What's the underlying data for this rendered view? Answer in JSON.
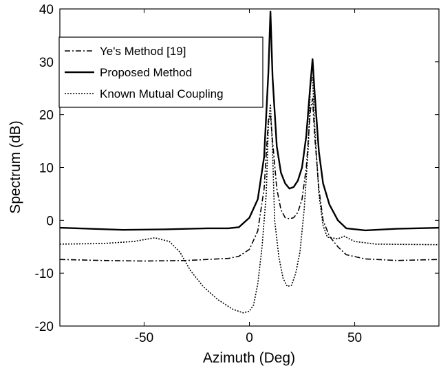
{
  "chart_data": {
    "type": "line",
    "title": "",
    "xlabel": "Azimuth (Deg)",
    "ylabel": "Spectrum (dB)",
    "xlim": [
      -90,
      90
    ],
    "ylim": [
      -20,
      40
    ],
    "xticks": [
      -50,
      0,
      50
    ],
    "yticks": [
      -20,
      -10,
      0,
      10,
      20,
      30,
      40
    ],
    "grid": false,
    "legend_position": "top-left",
    "series": [
      {
        "name": "Ye's Method [19]",
        "style": "dash-dot",
        "color": "#000000",
        "points": [
          [
            -90,
            -7.4
          ],
          [
            -70,
            -7.6
          ],
          [
            -50,
            -7.7
          ],
          [
            -30,
            -7.6
          ],
          [
            -20,
            -7.4
          ],
          [
            -10,
            -7.2
          ],
          [
            -5,
            -6.8
          ],
          [
            0,
            -5.5
          ],
          [
            4,
            -2
          ],
          [
            7,
            6
          ],
          [
            9,
            19
          ],
          [
            10,
            20
          ],
          [
            11,
            15
          ],
          [
            13,
            6
          ],
          [
            15,
            2
          ],
          [
            17,
            0.5
          ],
          [
            19,
            0.3
          ],
          [
            21,
            0.5
          ],
          [
            23,
            1.5
          ],
          [
            25,
            4
          ],
          [
            27,
            10
          ],
          [
            29,
            21
          ],
          [
            30,
            23
          ],
          [
            31,
            16
          ],
          [
            33,
            6
          ],
          [
            35,
            0
          ],
          [
            38,
            -3
          ],
          [
            42,
            -5
          ],
          [
            46,
            -6.5
          ],
          [
            55,
            -7.3
          ],
          [
            70,
            -7.6
          ],
          [
            90,
            -7.4
          ]
        ]
      },
      {
        "name": "Proposed Method",
        "style": "solid",
        "color": "#000000",
        "points": [
          [
            -90,
            -1.4
          ],
          [
            -60,
            -1.8
          ],
          [
            -40,
            -1.7
          ],
          [
            -20,
            -1.5
          ],
          [
            -10,
            -1.5
          ],
          [
            -5,
            -1.3
          ],
          [
            0,
            0.5
          ],
          [
            4,
            4
          ],
          [
            7,
            12
          ],
          [
            9,
            28
          ],
          [
            10,
            39.5
          ],
          [
            11,
            27
          ],
          [
            13,
            14
          ],
          [
            15,
            9
          ],
          [
            17,
            7
          ],
          [
            19,
            6
          ],
          [
            21,
            6.3
          ],
          [
            23,
            7.5
          ],
          [
            25,
            10
          ],
          [
            27,
            16
          ],
          [
            29,
            26
          ],
          [
            30,
            30.5
          ],
          [
            31,
            24
          ],
          [
            33,
            13
          ],
          [
            35,
            7
          ],
          [
            38,
            3
          ],
          [
            42,
            0
          ],
          [
            46,
            -1.5
          ],
          [
            55,
            -1.9
          ],
          [
            70,
            -1.6
          ],
          [
            90,
            -1.4
          ]
        ]
      },
      {
        "name": "Known Mutual Coupling",
        "style": "dotted",
        "color": "#000000",
        "points": [
          [
            -90,
            -4.5
          ],
          [
            -70,
            -4.4
          ],
          [
            -55,
            -4
          ],
          [
            -45,
            -3.3
          ],
          [
            -38,
            -4
          ],
          [
            -33,
            -6
          ],
          [
            -28,
            -9.5
          ],
          [
            -22,
            -12.5
          ],
          [
            -15,
            -15
          ],
          [
            -8,
            -16.8
          ],
          [
            -3,
            -17.5
          ],
          [
            0,
            -17.2
          ],
          [
            2,
            -16
          ],
          [
            4,
            -12
          ],
          [
            6,
            -5
          ],
          [
            8,
            5
          ],
          [
            9,
            18
          ],
          [
            10,
            22
          ],
          [
            11,
            13
          ],
          [
            12,
            0
          ],
          [
            14,
            -7
          ],
          [
            16,
            -11
          ],
          [
            18,
            -12.5
          ],
          [
            20,
            -12.3
          ],
          [
            22,
            -10
          ],
          [
            24,
            -6
          ],
          [
            26,
            2
          ],
          [
            28,
            14
          ],
          [
            29,
            26
          ],
          [
            30,
            27
          ],
          [
            31,
            18
          ],
          [
            33,
            5
          ],
          [
            35,
            -1
          ],
          [
            37,
            -3.2
          ],
          [
            42,
            -3.5
          ],
          [
            45,
            -3
          ],
          [
            50,
            -4
          ],
          [
            60,
            -4.5
          ],
          [
            90,
            -4.6
          ]
        ]
      }
    ]
  }
}
